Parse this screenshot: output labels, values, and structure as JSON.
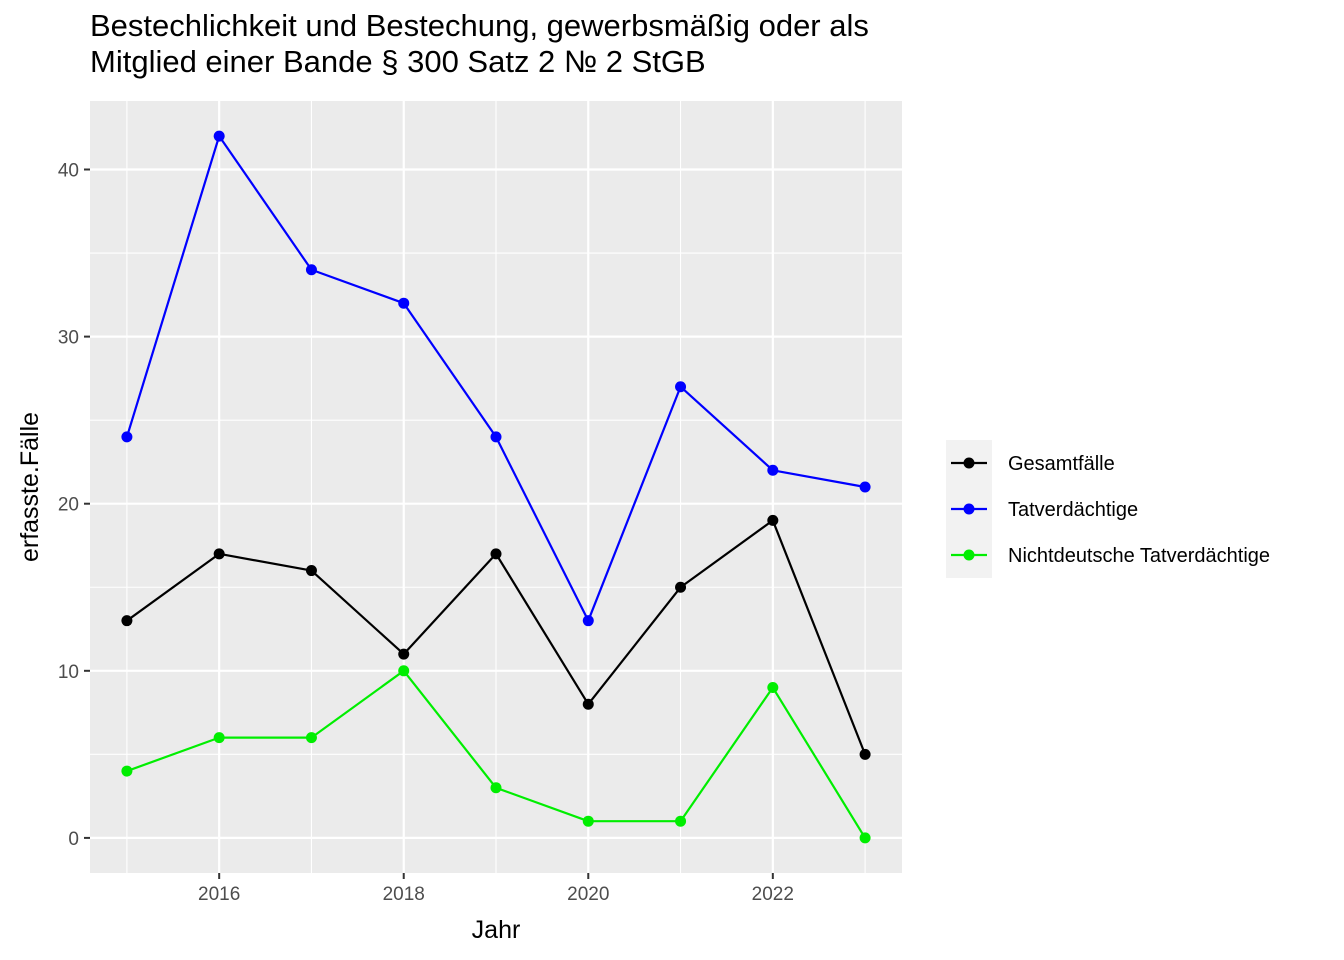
{
  "chart_data": {
    "type": "line",
    "title_lines": [
      "Bestechlichkeit und Bestechung, gewerbsmäßig oder als",
      "Mitglied einer Bande § 300 Satz 2 № 2 StGB"
    ],
    "xlabel": "Jahr",
    "ylabel": "erfasste.Fälle",
    "x": [
      2015,
      2016,
      2017,
      2018,
      2019,
      2020,
      2021,
      2022,
      2023
    ],
    "xlim": [
      2014.6,
      2023.4
    ],
    "ylim": [
      -2.1,
      44.1
    ],
    "x_ticks": [
      2016,
      2018,
      2020,
      2022
    ],
    "y_ticks": [
      0,
      10,
      20,
      30,
      40
    ],
    "grid": true,
    "legend_position": "right",
    "series": [
      {
        "name": "Gesamtfälle",
        "color": "#000000",
        "values": [
          13,
          17,
          16,
          11,
          17,
          8,
          15,
          19,
          5
        ]
      },
      {
        "name": "Tatverdächtige",
        "color": "#0000ff",
        "values": [
          24,
          42,
          34,
          32,
          24,
          13,
          27,
          22,
          21
        ]
      },
      {
        "name": "Nichtdeutsche Tatverdächtige",
        "color": "#00ee00",
        "values": [
          4,
          6,
          6,
          10,
          3,
          1,
          1,
          9,
          0
        ]
      }
    ]
  }
}
